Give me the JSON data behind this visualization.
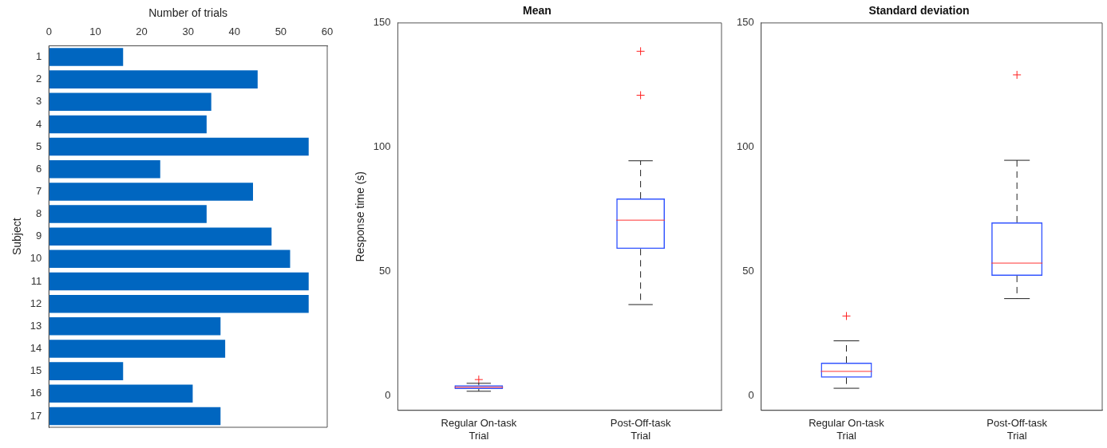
{
  "chart_data": [
    {
      "type": "bar",
      "orientation": "horizontal",
      "xlabel": "Number of trials",
      "ylabel": "Subject",
      "categories": [
        "1",
        "2",
        "3",
        "4",
        "5",
        "6",
        "7",
        "8",
        "9",
        "10",
        "11",
        "12",
        "13",
        "14",
        "15",
        "16",
        "17"
      ],
      "values": [
        16,
        45,
        35,
        34,
        56,
        24,
        44,
        34,
        48,
        52,
        56,
        56,
        37,
        38,
        16,
        31,
        37
      ],
      "color": "#0066c0",
      "xlim": [
        0,
        60
      ],
      "xticks": [
        0,
        10,
        20,
        30,
        40,
        50,
        60
      ],
      "grid": false,
      "legend": false
    },
    {
      "type": "box",
      "title": "Mean",
      "ylabel": "Response time (s)",
      "categories": [
        "Regular On-task\nTrial",
        "Post-Off-task\nTrial"
      ],
      "series": [
        {
          "color": "#3355ff",
          "boxes": [
            {
              "low": 1.7,
              "q1": 2.6,
              "median": 3.3,
              "q3": 4.1,
              "high": 4.9,
              "outliers": [
                6.4
              ]
            },
            {
              "low": 36.6,
              "q1": 59.0,
              "median": 70.6,
              "q3": 79.3,
              "high": 94.5,
              "outliers": [
                120.9,
                138.6
              ]
            }
          ]
        }
      ],
      "ylim": [
        -6,
        150
      ],
      "yticks": [
        0,
        50,
        100,
        150
      ],
      "grid": false,
      "legend": false
    },
    {
      "type": "box",
      "title": "Standard deviation",
      "categories": [
        "Regular On-task\nTrial",
        "Post-Off-task\nTrial"
      ],
      "series": [
        {
          "color": "#3355ff",
          "boxes": [
            {
              "low": 2.9,
              "q1": 7.2,
              "median": 9.7,
              "q3": 13.2,
              "high": 22.0,
              "outliers": [
                32.0
              ]
            },
            {
              "low": 39.0,
              "q1": 48.2,
              "median": 53.3,
              "q3": 69.7,
              "high": 94.7,
              "outliers": [
                129.1
              ]
            }
          ]
        }
      ],
      "ylim": [
        -6,
        150
      ],
      "yticks": [
        0,
        50,
        100,
        150
      ],
      "grid": false,
      "legend": false
    }
  ]
}
